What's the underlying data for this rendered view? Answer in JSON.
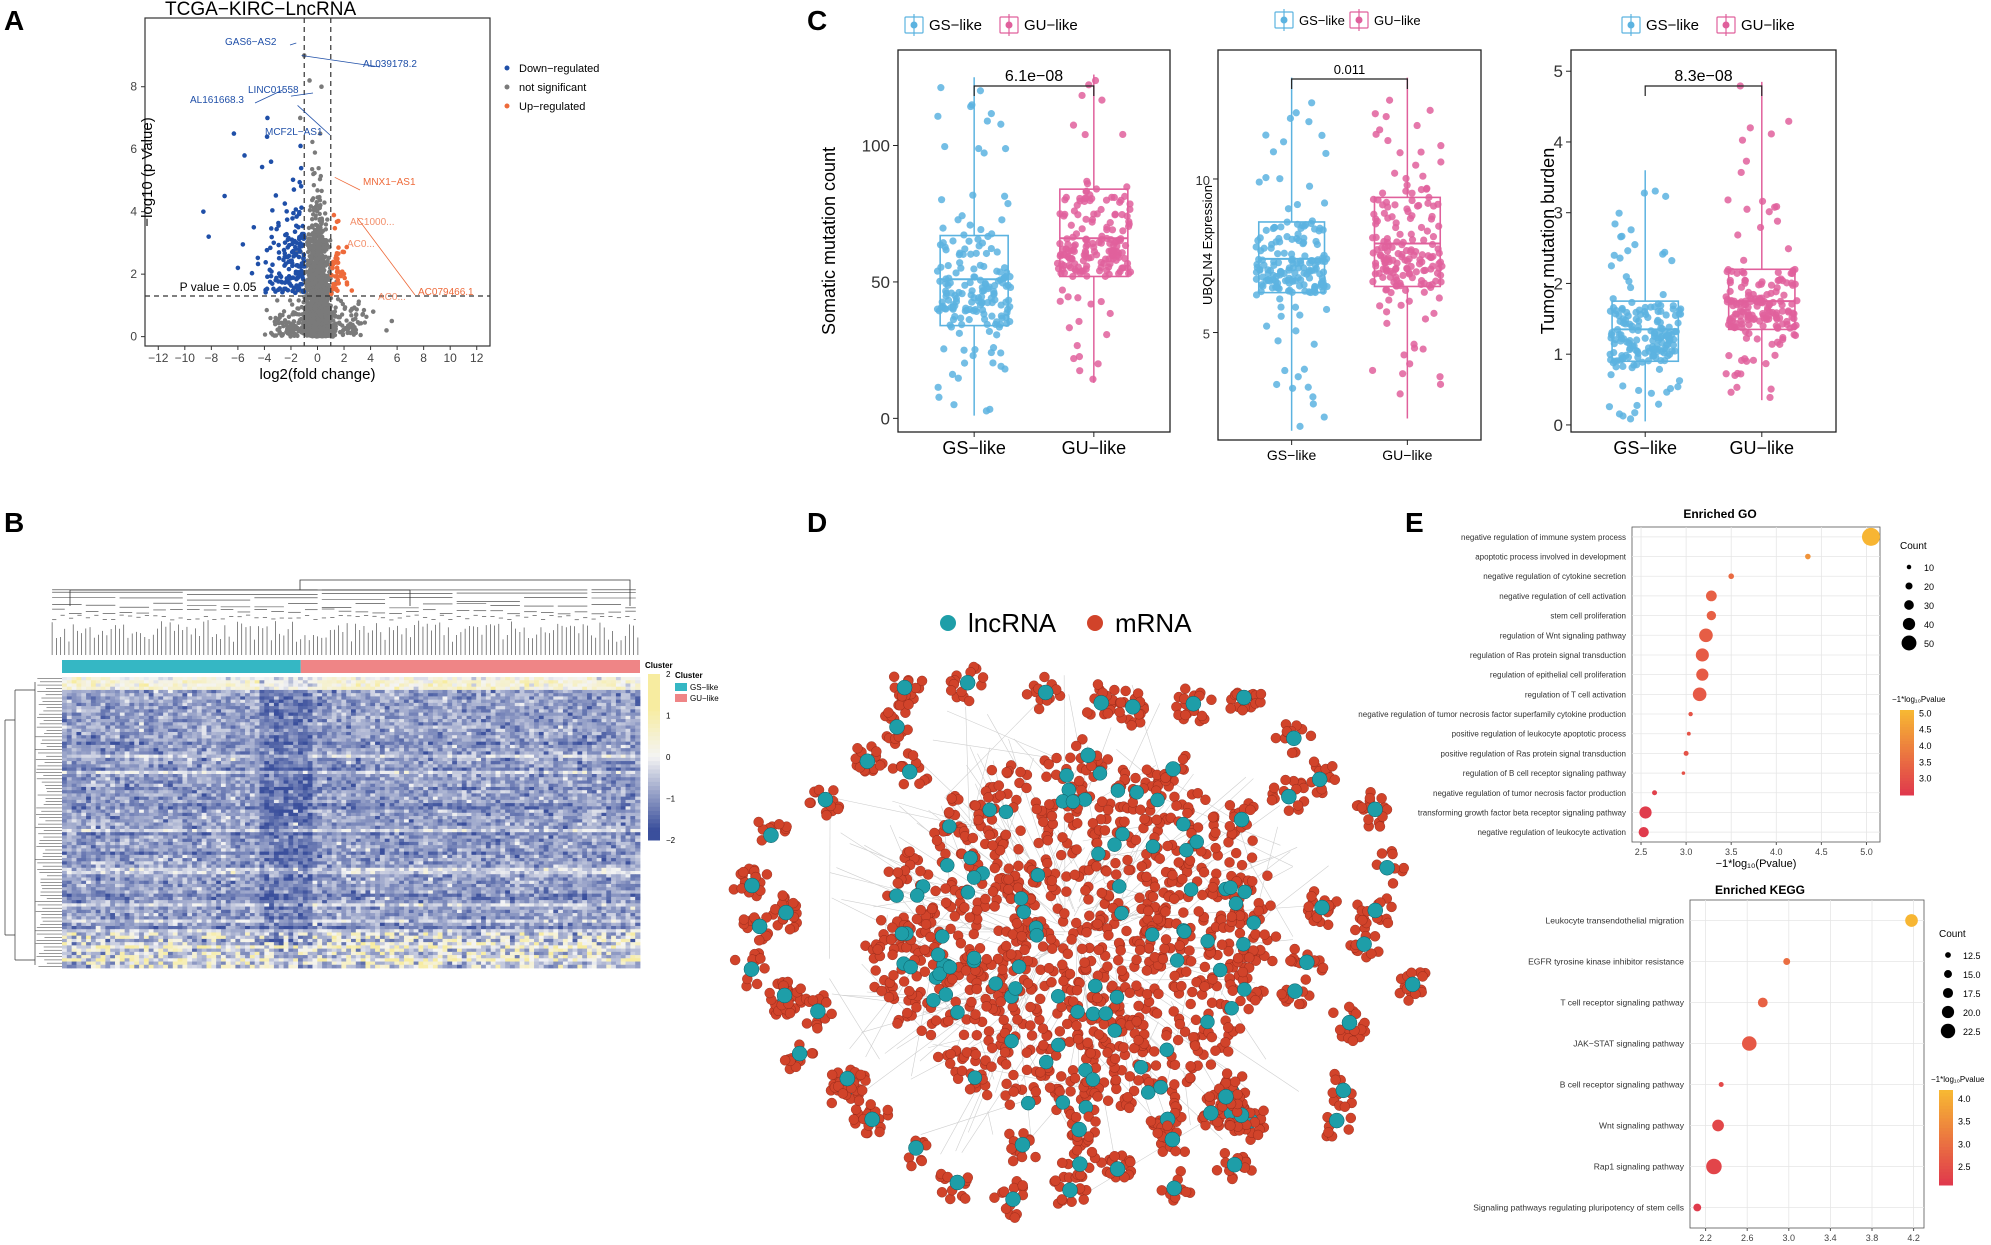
{
  "panels": {
    "A": "A",
    "B": "B",
    "C": "C",
    "D": "D",
    "E": "E"
  },
  "colors": {
    "down": "#1f4fa8",
    "ns": "#7a7a7a",
    "up": "#ee6a3a",
    "gs": "#5cb3e0",
    "gu": "#e0609c",
    "lnc": "#1e9ea8",
    "mrna": "#d1432a",
    "heat_low": "#3a4f9c",
    "heat_mid": "#f4f4f4",
    "heat_high": "#f7eca0",
    "cluster_gs": "#35b7c4",
    "cluster_gu": "#ef8586"
  },
  "chart_data": [
    {
      "id": "volcano",
      "type": "scatter",
      "title": "TCGA−KIRC−LncRNA",
      "xlabel": "log2(fold change)",
      "ylabel": "−log10 (p Value)",
      "xlim": [
        -13,
        13
      ],
      "ylim": [
        -0.3,
        10.2
      ],
      "xticks": [
        "−12",
        "−10",
        "−8",
        "−6",
        "−4",
        "−2",
        "0",
        "2",
        "4",
        "6",
        "8",
        "10",
        "12"
      ],
      "xtick_values": [
        -12,
        -10,
        -8,
        -6,
        -4,
        -2,
        0,
        2,
        4,
        6,
        8,
        10,
        12
      ],
      "yticks": [
        "0",
        "2",
        "4",
        "6",
        "8"
      ],
      "ytick_values": [
        0,
        2,
        4,
        6,
        8
      ],
      "threshold_label": "P value = 0.05",
      "threshold_y": 1.3,
      "fc_cutoffs": [
        -1,
        1
      ],
      "legend": [
        "Down−regulated",
        "not significant",
        "Up−regulated"
      ],
      "labels": [
        {
          "text": "GAS6−AS2",
          "x": -1.6,
          "y": 9.4,
          "group": "down"
        },
        {
          "text": "AL039178.2",
          "x": -1.2,
          "y": 9.0,
          "group": "down"
        },
        {
          "text": "AL161668.3",
          "x": -2.6,
          "y": 7.9,
          "group": "down"
        },
        {
          "text": "LINC01558",
          "x": -2.0,
          "y": 7.7,
          "group": "down"
        },
        {
          "text": "MCF2L−AS1",
          "x": -1.5,
          "y": 7.4,
          "group": "down"
        },
        {
          "text": "MNX1−AS1",
          "x": 1.3,
          "y": 5.1,
          "group": "up"
        },
        {
          "text": "AC079466.1",
          "x": 3.0,
          "y": 3.8,
          "group": "up"
        }
      ],
      "overlap_labels": [
        "AC1000...",
        "AC0...",
        "AC0..."
      ]
    },
    {
      "id": "box-somatic",
      "type": "box",
      "ylabel": "Somatic mutation count",
      "categories": [
        "GS−like",
        "GU−like"
      ],
      "legend": [
        "GS−like",
        "GU−like"
      ],
      "ylim": [
        -5,
        135
      ],
      "yticks": [
        "0",
        "50",
        "100"
      ],
      "ytick_values": [
        0,
        50,
        100
      ],
      "pvalue": "6.1e−08",
      "series": [
        {
          "name": "GS−like",
          "q1": 34,
          "median": 51,
          "q3": 67,
          "whisker_low": 1,
          "whisker_high": 125
        },
        {
          "name": "GU−like",
          "q1": 52,
          "median": 66,
          "q3": 84,
          "whisker_low": 13,
          "whisker_high": 126
        }
      ]
    },
    {
      "id": "box-ubqln4",
      "type": "box",
      "ylabel": "UBQLN4 Expression",
      "categories": [
        "GS−like",
        "GU−like"
      ],
      "legend": [
        "GS−like",
        "GU−like"
      ],
      "ylim": [
        1.5,
        14.2
      ],
      "yticks": [
        "5",
        "10"
      ],
      "ytick_values": [
        5,
        10
      ],
      "pvalue": "0.011",
      "series": [
        {
          "name": "GS−like",
          "q1": 6.3,
          "median": 7.4,
          "q3": 8.6,
          "whisker_low": 1.8,
          "whisker_high": 13.3
        },
        {
          "name": "GU−like",
          "q1": 6.5,
          "median": 7.9,
          "q3": 9.4,
          "whisker_low": 2.2,
          "whisker_high": 13.3
        }
      ]
    },
    {
      "id": "box-tmb",
      "type": "box",
      "ylabel": "Tumor mutation burden",
      "categories": [
        "GS−like",
        "GU−like"
      ],
      "legend": [
        "GS−like",
        "GU−like"
      ],
      "ylim": [
        -0.1,
        5.3
      ],
      "yticks": [
        "0",
        "1",
        "2",
        "3",
        "4",
        "5"
      ],
      "ytick_values": [
        0,
        1,
        2,
        3,
        4,
        5
      ],
      "pvalue": "8.3e−08",
      "series": [
        {
          "name": "GS−like",
          "q1": 0.9,
          "median": 1.35,
          "q3": 1.75,
          "whisker_low": 0.05,
          "whisker_high": 3.6
        },
        {
          "name": "GU−like",
          "q1": 1.35,
          "median": 1.75,
          "q3": 2.2,
          "whisker_low": 0.35,
          "whisker_high": 4.85
        }
      ]
    },
    {
      "id": "heatmap",
      "type": "heatmap",
      "legend_title": "Cluster",
      "cluster_title": "Cluster",
      "clusters": [
        "GS−like",
        "GU−like"
      ],
      "cluster_fraction_gs": 0.425,
      "scale_ticks": [
        "2",
        "1",
        "0",
        "−1",
        "−2"
      ],
      "scale_values": [
        2,
        1,
        0,
        -1,
        -2
      ]
    },
    {
      "id": "network",
      "type": "network",
      "legend": [
        "lncRNA",
        "mRNA"
      ]
    },
    {
      "id": "go",
      "type": "dot",
      "title": "Enriched GO",
      "xlabel": "−1*log₁₀(Pvalue)",
      "xlim": [
        2.4,
        5.15
      ],
      "xticks": [
        "2.5",
        "3.0",
        "3.5",
        "4.0",
        "4.5",
        "5.0"
      ],
      "xtick_values": [
        2.5,
        3.0,
        3.5,
        4.0,
        4.5,
        5.0
      ],
      "categories": [
        "negative regulation of immune system process",
        "apoptotic process involved in development",
        "negative regulation of cytokine secretion",
        "negative regulation of cell activation",
        "stem cell proliferation",
        "regulation of Wnt signaling pathway",
        "regulation of Ras protein signal transduction",
        "regulation of epithelial cell proliferation",
        "regulation of T cell activation",
        "negative regulation of tumor necrosis factor superfamily cytokine production",
        "positive regulation of leukocyte apoptotic process",
        "positive regulation of Ras protein signal transduction",
        "regulation of B cell receptor signaling pathway",
        "negative regulation of tumor necrosis factor production",
        "transforming growth factor beta receptor signaling pathway",
        "negative regulation of leukocyte activation"
      ],
      "x": [
        5.05,
        4.35,
        3.5,
        3.28,
        3.28,
        3.22,
        3.18,
        3.18,
        3.15,
        3.05,
        3.03,
        3.0,
        2.97,
        2.65,
        2.55,
        2.53
      ],
      "count": [
        55,
        12,
        12,
        30,
        25,
        40,
        38,
        35,
        40,
        8,
        6,
        10,
        5,
        10,
        35,
        28
      ],
      "size_legend_title": "Count",
      "size_legend": [
        "10",
        "20",
        "30",
        "40",
        "50"
      ],
      "size_legend_values": [
        10,
        20,
        30,
        40,
        50
      ],
      "color_legend_title": "−1*log₁₀Pvalue",
      "color_ticks": [
        "5.0",
        "4.5",
        "4.0",
        "3.5",
        "3.0"
      ],
      "color_tick_values": [
        5.0,
        4.5,
        4.0,
        3.5,
        3.0
      ],
      "color_range": [
        2.5,
        5.1
      ]
    },
    {
      "id": "kegg",
      "type": "dot",
      "title": "Enriched KEGG",
      "xlabel": "−1*log₁₀(Pvalue)",
      "xlim": [
        2.05,
        4.3
      ],
      "xticks": [
        "2.2",
        "2.6",
        "3.0",
        "3.4",
        "3.8",
        "4.2"
      ],
      "xtick_values": [
        2.2,
        2.6,
        3.0,
        3.4,
        3.8,
        4.2
      ],
      "categories": [
        "Leukocyte transendothelial migration",
        "EGFR tyrosine kinase inhibitor resistance",
        "T cell receptor signaling pathway",
        "JAK−STAT signaling pathway",
        "B cell receptor signaling pathway",
        "Wnt signaling pathway",
        "Rap1 signaling pathway",
        "Signaling pathways regulating pluripotency of stem cells"
      ],
      "x": [
        4.18,
        2.98,
        2.75,
        2.62,
        2.35,
        2.32,
        2.28,
        2.12
      ],
      "count": [
        19,
        13,
        16,
        21,
        11,
        18,
        22,
        14
      ],
      "size_legend_title": "Count",
      "size_legend": [
        "12.5",
        "15.0",
        "17.5",
        "20.0",
        "22.5"
      ],
      "size_legend_values": [
        12.5,
        15.0,
        17.5,
        20.0,
        22.5
      ],
      "color_legend_title": "−1*log₁₀Pvalue",
      "color_ticks": [
        "4.0",
        "3.5",
        "3.0",
        "2.5"
      ],
      "color_tick_values": [
        4.0,
        3.5,
        3.0,
        2.5
      ],
      "color_range": [
        2.1,
        4.2
      ]
    }
  ]
}
